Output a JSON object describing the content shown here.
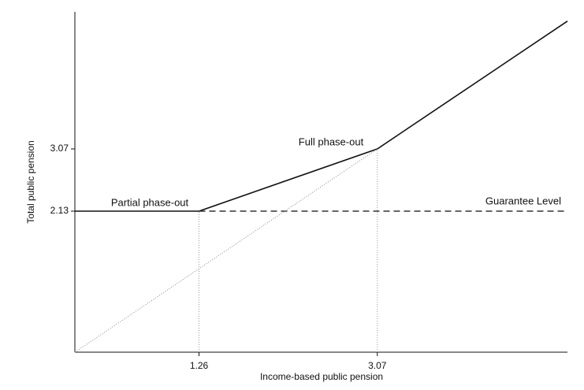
{
  "chart_data": {
    "type": "line",
    "x_label": "Income-based public pension",
    "y_label": "Total public pension",
    "xlim": [
      0,
      5
    ],
    "ylim": [
      0,
      5.2
    ],
    "xticks": [
      1.26,
      3.07
    ],
    "yticks": [
      2.13,
      3.07
    ],
    "series": [
      {
        "x": [
          0,
          1.26,
          3.07,
          5
        ],
        "values": [
          2.13,
          2.13,
          3.07,
          5
        ],
        "color": "#111111",
        "style": "solid"
      },
      {
        "x": [
          1.26,
          5
        ],
        "values": [
          2.13,
          2.13
        ],
        "color": "#333333",
        "style": "dashed"
      },
      {
        "x": [
          0,
          3.07
        ],
        "values": [
          0,
          3.07
        ],
        "color": "#888888",
        "style": "dotted"
      }
    ],
    "annotations": [
      "Partial phase-out",
      "Full phase-out",
      "Guarantee Level"
    ]
  }
}
